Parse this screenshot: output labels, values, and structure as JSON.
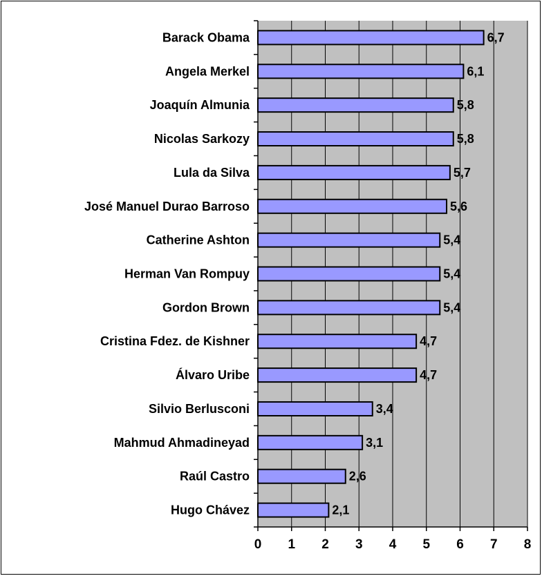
{
  "chart_data": {
    "type": "bar",
    "orientation": "horizontal",
    "categories": [
      "Barack Obama",
      "Angela Merkel",
      "Joaquín Almunia",
      "Nicolas Sarkozy",
      "Lula da Silva",
      "José Manuel Durao Barroso",
      "Catherine Ashton",
      "Herman Van Rompuy",
      "Gordon Brown",
      "Cristina Fdez. de Kishner",
      "Álvaro Uribe",
      "Silvio Berlusconi",
      "Mahmud Ahmadineyad",
      "Raúl Castro",
      "Hugo Chávez"
    ],
    "values": [
      6.7,
      6.1,
      5.8,
      5.8,
      5.7,
      5.6,
      5.4,
      5.4,
      5.4,
      4.7,
      4.7,
      3.4,
      3.1,
      2.6,
      2.1
    ],
    "value_labels": [
      "6,7",
      "6,1",
      "5,8",
      "5,8",
      "5,7",
      "5,6",
      "5,4",
      "5,4",
      "5,4",
      "4,7",
      "4,7",
      "3,4",
      "3,1",
      "2,6",
      "2,1"
    ],
    "x_ticks": [
      "0",
      "1",
      "2",
      "3",
      "4",
      "5",
      "6",
      "7",
      "8"
    ],
    "xlim": [
      0,
      8
    ],
    "grid": true,
    "legend": "none",
    "colors": {
      "bar_fill": "#9999ff",
      "bar_stroke": "#000000",
      "plot_background": "#c0c0c0",
      "gridline": "#000000"
    }
  }
}
